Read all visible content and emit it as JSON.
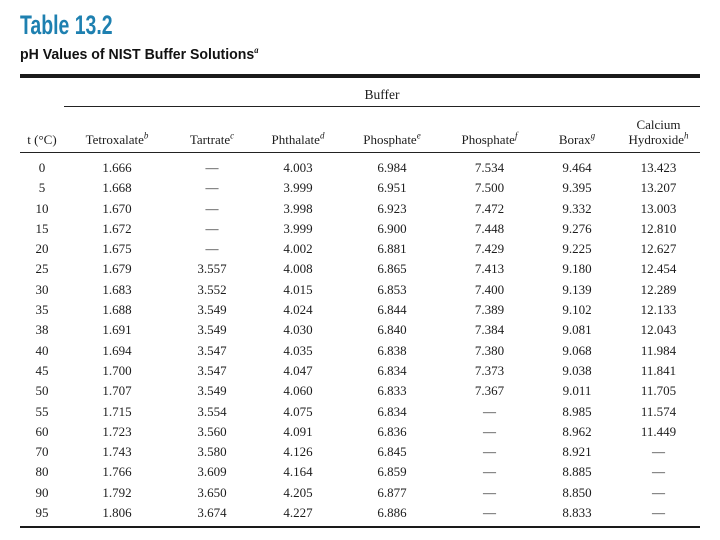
{
  "header": {
    "table_number": "Table 13.2",
    "title": "pH Values of NIST Buffer Solutions",
    "title_superscript": "a"
  },
  "colors": {
    "title_blue": "#1e80b0",
    "body_text": "#1c1c1c",
    "rule": "#1a1a1a"
  },
  "table": {
    "group_header": "Buffer",
    "columns": [
      {
        "label": "t (°C)",
        "sup": ""
      },
      {
        "label": "Tetroxalate",
        "sup": "b"
      },
      {
        "label": "Tartrate",
        "sup": "c"
      },
      {
        "label": "Phthalate",
        "sup": "d"
      },
      {
        "label": "Phosphate",
        "sup": "e"
      },
      {
        "label": "Phosphate",
        "sup": "f"
      },
      {
        "label": "Borax",
        "sup": "g"
      },
      {
        "label": "Calcium Hydroxide",
        "sup": "h"
      }
    ],
    "missing_value_symbol": "—",
    "rows": [
      [
        "0",
        "1.666",
        "—",
        "4.003",
        "6.984",
        "7.534",
        "9.464",
        "13.423"
      ],
      [
        "5",
        "1.668",
        "—",
        "3.999",
        "6.951",
        "7.500",
        "9.395",
        "13.207"
      ],
      [
        "10",
        "1.670",
        "—",
        "3.998",
        "6.923",
        "7.472",
        "9.332",
        "13.003"
      ],
      [
        "15",
        "1.672",
        "—",
        "3.999",
        "6.900",
        "7.448",
        "9.276",
        "12.810"
      ],
      [
        "20",
        "1.675",
        "—",
        "4.002",
        "6.881",
        "7.429",
        "9.225",
        "12.627"
      ],
      [
        "25",
        "1.679",
        "3.557",
        "4.008",
        "6.865",
        "7.413",
        "9.180",
        "12.454"
      ],
      [
        "30",
        "1.683",
        "3.552",
        "4.015",
        "6.853",
        "7.400",
        "9.139",
        "12.289"
      ],
      [
        "35",
        "1.688",
        "3.549",
        "4.024",
        "6.844",
        "7.389",
        "9.102",
        "12.133"
      ],
      [
        "38",
        "1.691",
        "3.549",
        "4.030",
        "6.840",
        "7.384",
        "9.081",
        "12.043"
      ],
      [
        "40",
        "1.694",
        "3.547",
        "4.035",
        "6.838",
        "7.380",
        "9.068",
        "11.984"
      ],
      [
        "45",
        "1.700",
        "3.547",
        "4.047",
        "6.834",
        "7.373",
        "9.038",
        "11.841"
      ],
      [
        "50",
        "1.707",
        "3.549",
        "4.060",
        "6.833",
        "7.367",
        "9.011",
        "11.705"
      ],
      [
        "55",
        "1.715",
        "3.554",
        "4.075",
        "6.834",
        "—",
        "8.985",
        "11.574"
      ],
      [
        "60",
        "1.723",
        "3.560",
        "4.091",
        "6.836",
        "—",
        "8.962",
        "11.449"
      ],
      [
        "70",
        "1.743",
        "3.580",
        "4.126",
        "6.845",
        "—",
        "8.921",
        "—"
      ],
      [
        "80",
        "1.766",
        "3.609",
        "4.164",
        "6.859",
        "—",
        "8.885",
        "—"
      ],
      [
        "90",
        "1.792",
        "3.650",
        "4.205",
        "6.877",
        "—",
        "8.850",
        "—"
      ],
      [
        "95",
        "1.806",
        "3.674",
        "4.227",
        "6.886",
        "—",
        "8.833",
        "—"
      ]
    ]
  }
}
